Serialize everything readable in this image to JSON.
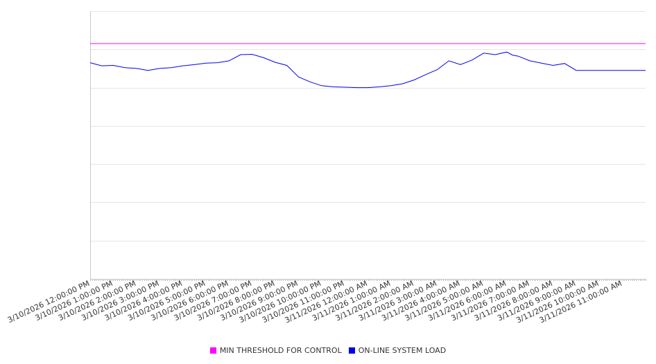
{
  "chart_data": {
    "type": "line",
    "title": "",
    "xlabel": "",
    "ylabel": "",
    "grid": true,
    "legend_position": "bottom",
    "x_unit": "hours from 3/10/2026 12:00:00 PM",
    "xlim": [
      0,
      24
    ],
    "ylim": [
      0,
      7
    ],
    "y_tick_labels_visible": false,
    "x_tick_labels": [
      "3/10/2026 12:00:00 PM",
      "3/10/2026 1:00:00 PM",
      "3/10/2026 2:00:00 PM",
      "3/10/2026 3:00:00 PM",
      "3/10/2026 4:00:00 PM",
      "3/10/2026 5:00:00 PM",
      "3/10/2026 6:00:00 PM",
      "3/10/2026 7:00:00 PM",
      "3/10/2026 8:00:00 PM",
      "3/10/2026 9:00:00 PM",
      "3/10/2026 10:00:00 PM",
      "3/10/2026 11:00:00 PM",
      "3/11/2026 12:00:00 AM",
      "3/11/2026 1:00:00 AM",
      "3/11/2026 2:00:00 AM",
      "3/11/2026 3:00:00 AM",
      "3/11/2026 4:00:00 AM",
      "3/11/2026 5:00:00 AM",
      "3/11/2026 6:00:00 AM",
      "3/11/2026 7:00:00 AM",
      "3/11/2026 8:00:00 AM",
      "3/11/2026 9:00:00 AM",
      "3/11/2026 10:00:00 AM",
      "3/11/2026 11:00:00 AM"
    ],
    "series": [
      {
        "name": "MIN THRESHOLD FOR CONTROL",
        "color": "#ff00ff",
        "x": [
          0,
          24
        ],
        "y": [
          6.15,
          6.15
        ]
      },
      {
        "name": "ON-LINE SYSTEM LOAD",
        "color": "#0000ee",
        "x": [
          0,
          0.5,
          1,
          1.5,
          2,
          2.5,
          3,
          3.5,
          4,
          4.5,
          5,
          5.5,
          6,
          6.5,
          7,
          7.5,
          8,
          8.5,
          9,
          9.5,
          10,
          10.5,
          11,
          11.5,
          12,
          12.5,
          13,
          13.5,
          14,
          14.5,
          15,
          15.5,
          16,
          16.5,
          17,
          17.5,
          18,
          18.25,
          18.5,
          19,
          19.5,
          20,
          20.5,
          21,
          21.5,
          22,
          22.5,
          23,
          23.5,
          24
        ],
        "y": [
          5.65,
          5.57,
          5.58,
          5.52,
          5.5,
          5.45,
          5.5,
          5.52,
          5.57,
          5.6,
          5.64,
          5.65,
          5.7,
          5.86,
          5.87,
          5.78,
          5.66,
          5.58,
          5.28,
          5.15,
          5.05,
          5.02,
          5.01,
          5.0,
          5.0,
          5.02,
          5.05,
          5.1,
          5.2,
          5.34,
          5.47,
          5.7,
          5.6,
          5.72,
          5.9,
          5.86,
          5.93,
          5.85,
          5.82,
          5.7,
          5.64,
          5.58,
          5.63,
          5.45,
          5.45,
          5.45,
          5.45,
          5.45,
          5.45,
          5.45
        ]
      }
    ]
  }
}
